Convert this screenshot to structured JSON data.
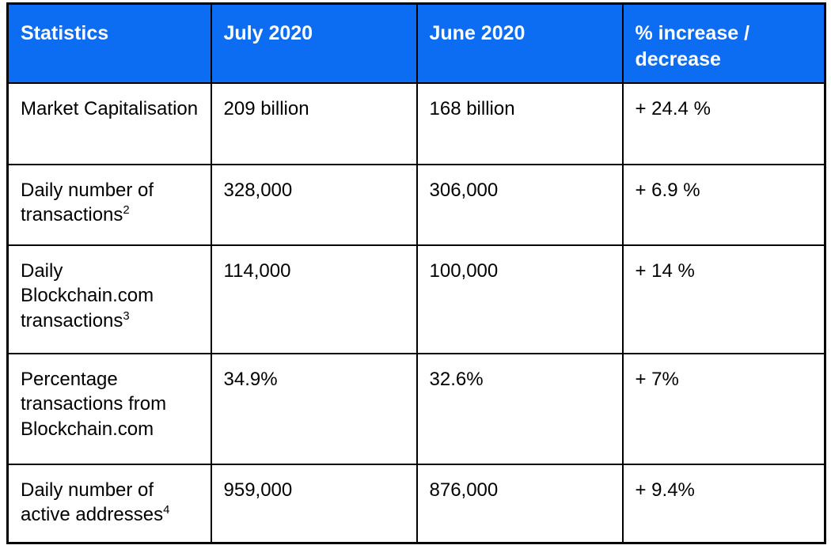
{
  "table": {
    "name": "monthly-statistics-comparison",
    "colors": {
      "header_bg": "#0c6cf2",
      "header_text": "#ffffff",
      "body_text": "#000000",
      "border": "#000000",
      "background": "#ffffff"
    },
    "headers": {
      "statistic": "Statistics",
      "july": "July 2020",
      "june": "June 2020",
      "change": "% increase / decrease"
    },
    "rows": [
      {
        "stat": "Market Capitalisation",
        "sup": "",
        "july": "209 billion",
        "june": "168 billion",
        "change": "+ 24.4 %"
      },
      {
        "stat": "Daily number of transactions",
        "sup": "2",
        "july": "328,000",
        "june": "306,000",
        "change": "+ 6.9 %"
      },
      {
        "stat": "Daily Blockchain.com transactions",
        "sup": "3",
        "july": "114,000",
        "june": "100,000",
        "change": "+ 14 %"
      },
      {
        "stat": "Percentage transactions from Blockchain.com",
        "sup": "",
        "july": "34.9%",
        "june": "32.6%",
        "change": "+ 7%"
      },
      {
        "stat": "Daily number of active addresses",
        "sup": "4",
        "july": "959,000",
        "june": "876,000",
        "change": "+ 9.4%"
      }
    ]
  }
}
